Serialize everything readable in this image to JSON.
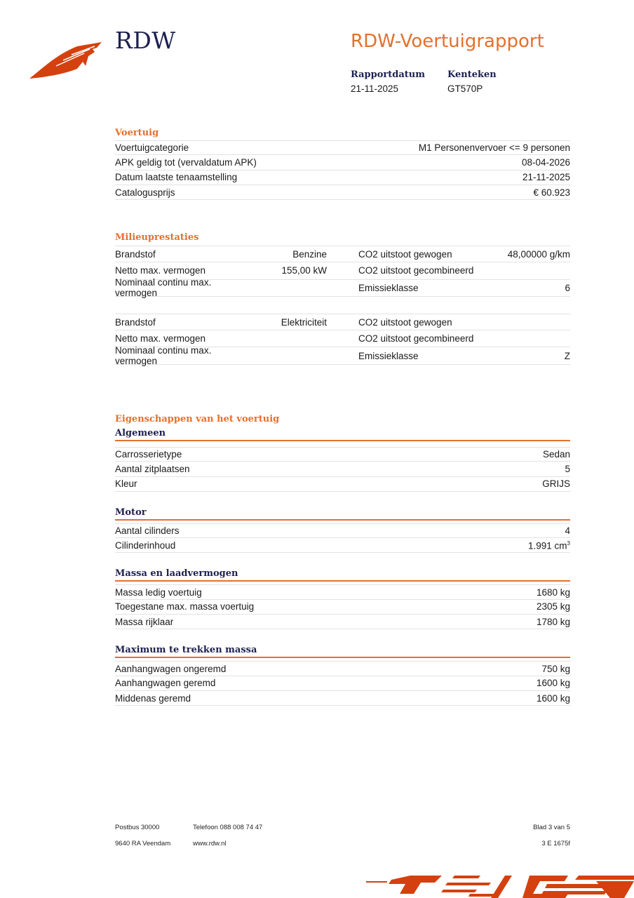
{
  "header": {
    "logo": "RDW",
    "title": "RDW-Voertuigrapport",
    "rapportdatum_label": "Rapportdatum",
    "rapportdatum": "21-11-2025",
    "kenteken_label": "Kenteken",
    "kenteken": "GT570P"
  },
  "voertuig": {
    "heading": "Voertuig",
    "rows": [
      {
        "label": "Voertuigcategorie",
        "value": "M1 Personenvervoer <= 9 personen"
      },
      {
        "label": "APK geldig tot (vervaldatum APK)",
        "value": "08-04-2026"
      },
      {
        "label": "Datum laatste tenaamstelling",
        "value": "21-11-2025"
      },
      {
        "label": "Catalogusprijs",
        "value": "€ 60.923"
      }
    ]
  },
  "milieu": {
    "heading": "Milieuprestaties",
    "blocks": [
      [
        {
          "l1": "Brandstof",
          "v1": "Benzine",
          "l2": "CO2 uitstoot gewogen",
          "v2": "48,00000 g/km"
        },
        {
          "l1": "Netto max. vermogen",
          "v1": "155,00 kW",
          "l2": "CO2 uitstoot gecombineerd",
          "v2": ""
        },
        {
          "l1": "Nominaal continu max. vermogen",
          "v1": "",
          "l2": "Emissieklasse",
          "v2": "6"
        }
      ],
      [
        {
          "l1": "Brandstof",
          "v1": "Elektriciteit",
          "l2": "CO2 uitstoot gewogen",
          "v2": ""
        },
        {
          "l1": "Netto max. vermogen",
          "v1": "",
          "l2": "CO2 uitstoot gecombineerd",
          "v2": ""
        },
        {
          "l1": "Nominaal continu max. vermogen",
          "v1": "",
          "l2": "Emissieklasse",
          "v2": "Z"
        }
      ]
    ]
  },
  "eigenschappen": {
    "heading": "Eigenschappen van het voertuig",
    "groups": [
      {
        "title": "Algemeen",
        "rows": [
          {
            "label": "Carrosserietype",
            "value": "Sedan"
          },
          {
            "label": "Aantal zitplaatsen",
            "value": "5"
          },
          {
            "label": "Kleur",
            "value": "GRIJS"
          }
        ]
      },
      {
        "title": "Motor",
        "rows": [
          {
            "label": "Aantal cilinders",
            "value": "4"
          },
          {
            "label": "Cilinderinhoud",
            "value": "1.991 cm",
            "sup": "3"
          }
        ]
      },
      {
        "title": "Massa en laadvermogen",
        "rows": [
          {
            "label": "Massa ledig voertuig",
            "value": "1680 kg"
          },
          {
            "label": "Toegestane max. massa voertuig",
            "value": "2305 kg"
          },
          {
            "label": "Massa rijklaar",
            "value": "1780 kg"
          }
        ]
      },
      {
        "title": "Maximum te trekken massa",
        "rows": [
          {
            "label": "Aanhangwagen ongeremd",
            "value": "750 kg"
          },
          {
            "label": "Aanhangwagen geremd",
            "value": "1600 kg"
          },
          {
            "label": "Middenas geremd",
            "value": "1600 kg"
          }
        ]
      }
    ]
  },
  "footer": {
    "postbus": "Postbus 30000",
    "plaats": "9640 RA Veendam",
    "telefoon": "Telefoon 088 008 74 47",
    "web": "www.rdw.nl",
    "blad": "Blad 3 van 5",
    "code": "3 E 1675f"
  },
  "colors": {
    "accent": "#e4702d",
    "navy": "#1d2150",
    "logo_red": "#d4410f"
  }
}
